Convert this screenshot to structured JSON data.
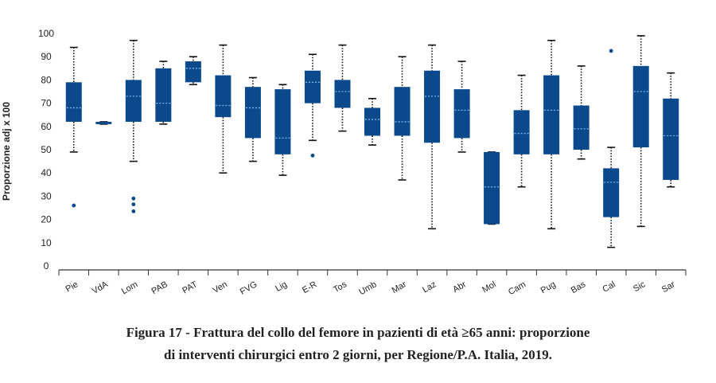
{
  "chart_data": {
    "type": "boxplot",
    "ylabel": "Proporzione adj x 100",
    "ylim": [
      0,
      100
    ],
    "yticks": [
      0,
      10,
      20,
      30,
      40,
      50,
      60,
      70,
      80,
      90,
      100
    ],
    "colors": {
      "box": "#0a4a8c",
      "median": "#7fb3e6",
      "whisker": "#111111",
      "outlier": "#0a4a8c"
    },
    "categories": [
      "Pie",
      "VdA",
      "Lom",
      "PAB",
      "PAT",
      "Ven",
      "FVG",
      "Lig",
      "E-R",
      "Tos",
      "Umb",
      "Mar",
      "Laz",
      "Abr",
      "Mol",
      "Cam",
      "Pug",
      "Bas",
      "Cal",
      "Sic",
      "Sar"
    ],
    "boxes": [
      {
        "min": 49,
        "q1": 62,
        "median": 68,
        "q3": 79,
        "max": 94,
        "outliers": [
          26
        ]
      },
      {
        "min": 61,
        "q1": 61,
        "median": 61.5,
        "q3": 62,
        "max": 62,
        "outliers": []
      },
      {
        "min": 45,
        "q1": 62,
        "median": 73,
        "q3": 80,
        "max": 97,
        "outliers": [
          29,
          26.5,
          23.5
        ]
      },
      {
        "min": 61,
        "q1": 62,
        "median": 70,
        "q3": 85,
        "max": 88,
        "outliers": []
      },
      {
        "min": 78,
        "q1": 79,
        "median": 85,
        "q3": 88,
        "max": 90,
        "outliers": []
      },
      {
        "min": 40,
        "q1": 64,
        "median": 69,
        "q3": 82,
        "max": 95,
        "outliers": []
      },
      {
        "min": 45,
        "q1": 55,
        "median": 68,
        "q3": 77,
        "max": 81,
        "outliers": []
      },
      {
        "min": 39,
        "q1": 48,
        "median": 55,
        "q3": 76,
        "max": 78,
        "outliers": []
      },
      {
        "min": 54,
        "q1": 70,
        "median": 79,
        "q3": 84,
        "max": 91,
        "outliers": [
          47.5
        ]
      },
      {
        "min": 58,
        "q1": 68,
        "median": 75,
        "q3": 80,
        "max": 95,
        "outliers": []
      },
      {
        "min": 52,
        "q1": 56,
        "median": 63,
        "q3": 68,
        "max": 72,
        "outliers": []
      },
      {
        "min": 37,
        "q1": 56,
        "median": 62,
        "q3": 77,
        "max": 90,
        "outliers": []
      },
      {
        "min": 16,
        "q1": 53,
        "median": 73,
        "q3": 84,
        "max": 95,
        "outliers": []
      },
      {
        "min": 49,
        "q1": 55,
        "median": 67,
        "q3": 76,
        "max": 88,
        "outliers": []
      },
      {
        "min": 18,
        "q1": 18,
        "median": 34,
        "q3": 49,
        "max": 49,
        "outliers": []
      },
      {
        "min": 34,
        "q1": 48,
        "median": 57,
        "q3": 67,
        "max": 82,
        "outliers": []
      },
      {
        "min": 16,
        "q1": 48,
        "median": 67,
        "q3": 82,
        "max": 97,
        "outliers": []
      },
      {
        "min": 46,
        "q1": 50,
        "median": 59,
        "q3": 69,
        "max": 86,
        "outliers": []
      },
      {
        "min": 8,
        "q1": 21,
        "median": 36,
        "q3": 42,
        "max": 51,
        "outliers": [
          92.5
        ]
      },
      {
        "min": 17,
        "q1": 51,
        "median": 75,
        "q3": 86,
        "max": 99,
        "outliers": []
      },
      {
        "min": 34,
        "q1": 37,
        "median": 56,
        "q3": 72,
        "max": 83,
        "outliers": []
      }
    ]
  },
  "caption": {
    "line1": "Figura 17 - Frattura del collo del femore in pazienti di età ≥65 anni: proporzione",
    "line2": "di interventi chirurgici entro 2 giorni, per Regione/P.A. Italia, 2019."
  }
}
